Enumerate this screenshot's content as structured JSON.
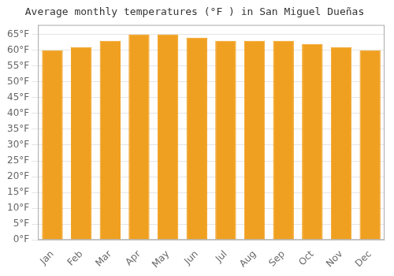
{
  "chart_data": {
    "type": "bar",
    "title": "Average monthly temperatures (°F ) in San Miguel Dueñas",
    "categories": [
      "Jan",
      "Feb",
      "Mar",
      "Apr",
      "May",
      "Jun",
      "Jul",
      "Aug",
      "Sep",
      "Oct",
      "Nov",
      "Dec"
    ],
    "values": [
      60,
      61,
      63,
      65,
      65,
      64,
      63,
      63,
      63,
      62,
      61,
      60
    ],
    "color": "#F0A020",
    "ylim": [
      0,
      68
    ],
    "yticks": [
      {
        "value": 0,
        "label": "0°F"
      },
      {
        "value": 5,
        "label": "5°F"
      },
      {
        "value": 10,
        "label": "10°F"
      },
      {
        "value": 15,
        "label": "15°F"
      },
      {
        "value": 20,
        "label": "20°F"
      },
      {
        "value": 25,
        "label": "25°F"
      },
      {
        "value": 30,
        "label": "30°F"
      },
      {
        "value": 35,
        "label": "35°F"
      },
      {
        "value": 40,
        "label": "40°F"
      },
      {
        "value": 45,
        "label": "45°F"
      },
      {
        "value": 50,
        "label": "50°F"
      },
      {
        "value": 55,
        "label": "55°F"
      },
      {
        "value": 60,
        "label": "60°F"
      },
      {
        "value": 65,
        "label": "65°F"
      }
    ],
    "grid": true
  }
}
